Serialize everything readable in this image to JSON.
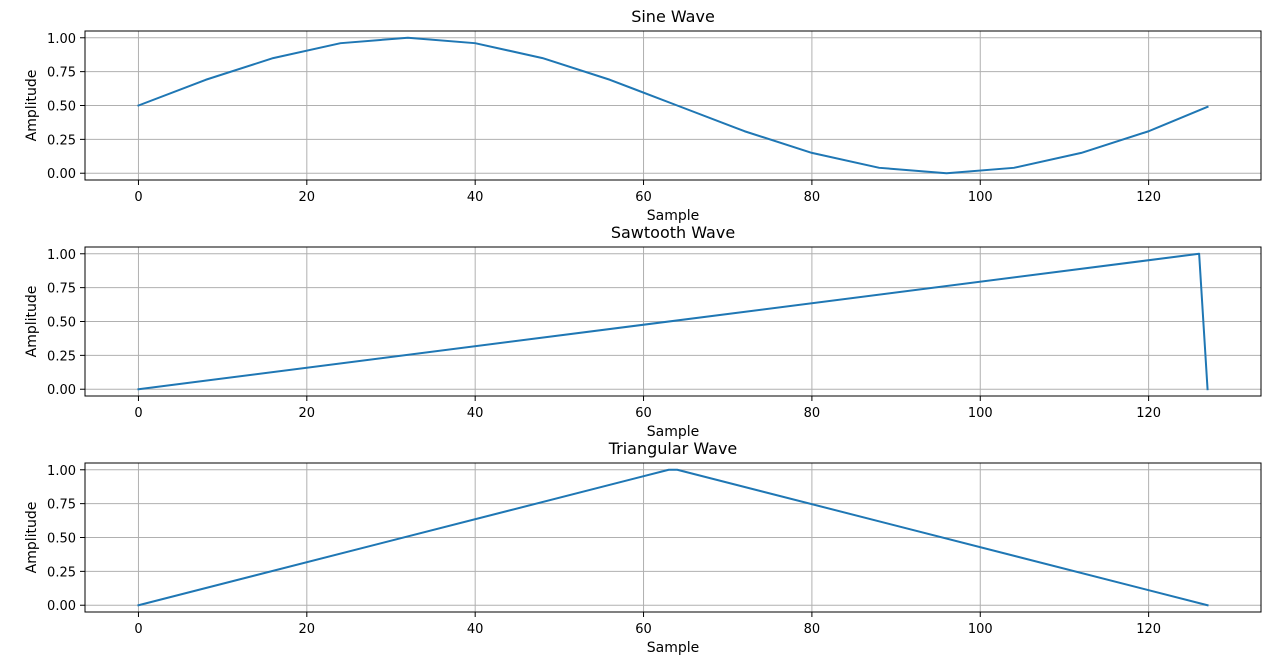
{
  "chart_data": [
    {
      "type": "line",
      "title": "Sine Wave",
      "xlabel": "Sample",
      "ylabel": "Amplitude",
      "xlim": [
        -6.35,
        133.35
      ],
      "ylim": [
        -0.05,
        1.05
      ],
      "xticks": [
        0,
        20,
        40,
        60,
        80,
        100,
        120
      ],
      "xtick_labels": [
        "0",
        "20",
        "40",
        "60",
        "80",
        "100",
        "120"
      ],
      "yticks": [
        0,
        0.25,
        0.5,
        0.75,
        1.0
      ],
      "ytick_labels": [
        "0.00",
        "0.25",
        "0.50",
        "0.75",
        "1.00"
      ],
      "grid": true,
      "color": "#1f77b4",
      "series": [
        {
          "x": [
            0,
            8,
            16,
            24,
            32,
            40,
            48,
            56,
            64,
            72,
            80,
            88,
            96,
            104,
            112,
            120,
            127
          ],
          "values": [
            0.5,
            0.69,
            0.85,
            0.96,
            1.0,
            0.96,
            0.85,
            0.69,
            0.5,
            0.31,
            0.15,
            0.04,
            0.0,
            0.04,
            0.15,
            0.31,
            0.49
          ]
        }
      ]
    },
    {
      "type": "line",
      "title": "Sawtooth Wave",
      "xlabel": "Sample",
      "ylabel": "Amplitude",
      "xlim": [
        -6.35,
        133.35
      ],
      "ylim": [
        -0.05,
        1.05
      ],
      "xticks": [
        0,
        20,
        40,
        60,
        80,
        100,
        120
      ],
      "xtick_labels": [
        "0",
        "20",
        "40",
        "60",
        "80",
        "100",
        "120"
      ],
      "yticks": [
        0,
        0.25,
        0.5,
        0.75,
        1.0
      ],
      "ytick_labels": [
        "0.00",
        "0.25",
        "0.50",
        "0.75",
        "1.00"
      ],
      "grid": true,
      "color": "#1f77b4",
      "series": [
        {
          "x": [
            0,
            126,
            127
          ],
          "values": [
            0.0,
            1.0,
            0.0
          ]
        }
      ]
    },
    {
      "type": "line",
      "title": "Triangular Wave",
      "xlabel": "Sample",
      "ylabel": "Amplitude",
      "xlim": [
        -6.35,
        133.35
      ],
      "ylim": [
        -0.05,
        1.05
      ],
      "xticks": [
        0,
        20,
        40,
        60,
        80,
        100,
        120
      ],
      "xtick_labels": [
        "0",
        "20",
        "40",
        "60",
        "80",
        "100",
        "120"
      ],
      "yticks": [
        0,
        0.25,
        0.5,
        0.75,
        1.0
      ],
      "ytick_labels": [
        "0.00",
        "0.25",
        "0.50",
        "0.75",
        "1.00"
      ],
      "grid": true,
      "color": "#1f77b4",
      "series": [
        {
          "x": [
            0,
            63,
            64,
            127
          ],
          "values": [
            0.0,
            1.0,
            1.0,
            0.0
          ]
        }
      ]
    }
  ]
}
